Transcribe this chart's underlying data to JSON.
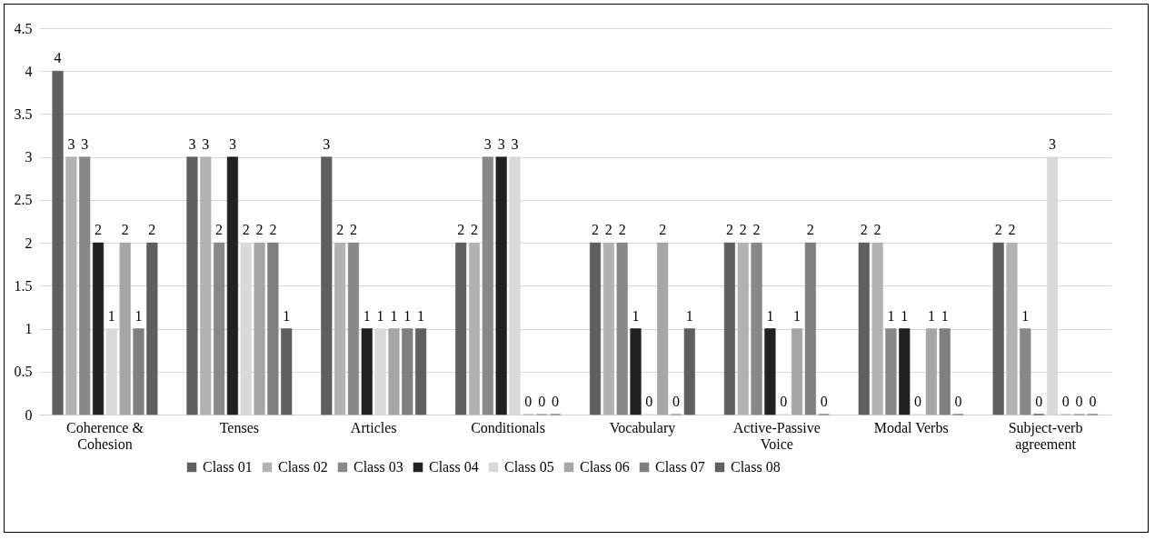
{
  "chart_data": {
    "type": "bar",
    "categories": [
      "Coherence & Cohesion",
      "Tenses",
      "Articles",
      "Conditionals",
      "Vocabulary",
      "Active-Passive Voice",
      "Modal Verbs",
      "Subject-verb agreement"
    ],
    "series": [
      {
        "name": "Class 01",
        "color": "#5f5f5f",
        "values": [
          4,
          3,
          3,
          2,
          2,
          2,
          2,
          2
        ]
      },
      {
        "name": "Class 02",
        "color": "#b2b2b2",
        "values": [
          3,
          3,
          2,
          2,
          2,
          2,
          2,
          2
        ]
      },
      {
        "name": "Class 03",
        "color": "#888888",
        "values": [
          3,
          2,
          2,
          3,
          2,
          2,
          1,
          1
        ]
      },
      {
        "name": "Class 04",
        "color": "#212121",
        "values": [
          2,
          3,
          1,
          3,
          1,
          1,
          1,
          0
        ]
      },
      {
        "name": "Class 05",
        "color": "#d9d9d9",
        "values": [
          1,
          2,
          1,
          3,
          0,
          0,
          0,
          3
        ]
      },
      {
        "name": "Class 06",
        "color": "#a6a6a6",
        "values": [
          2,
          2,
          1,
          0,
          2,
          1,
          1,
          0
        ]
      },
      {
        "name": "Class 07",
        "color": "#7f7f7f",
        "values": [
          1,
          2,
          1,
          0,
          0,
          2,
          1,
          0
        ]
      },
      {
        "name": "Class 08",
        "color": "#5f5f5f",
        "values": [
          2,
          1,
          1,
          0,
          1,
          0,
          0,
          0
        ]
      }
    ],
    "ylim": [
      0,
      4.5
    ],
    "yticks": [
      0,
      0.5,
      1,
      1.5,
      2,
      2.5,
      3,
      3.5,
      4,
      4.5
    ],
    "grid": "y",
    "legend": "bottom",
    "data_labels": true
  }
}
